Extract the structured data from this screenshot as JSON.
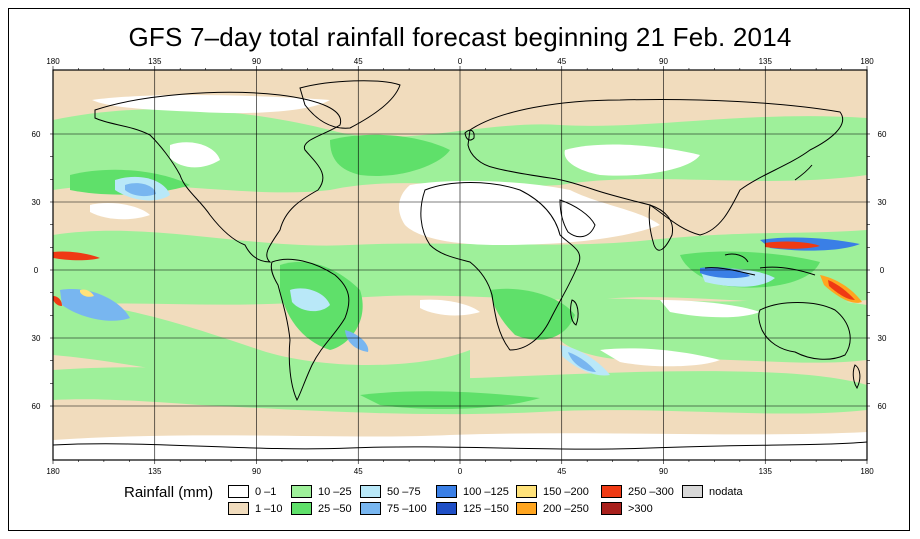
{
  "title": "GFS 7–day total rainfall forecast beginning 21 Feb. 2014",
  "axes": {
    "lon_labels": [
      "180",
      "135",
      "90",
      "45",
      "0",
      "45",
      "90",
      "135",
      "180"
    ],
    "lat_labels_left": [
      "60",
      "30",
      "0",
      "30",
      "60"
    ],
    "lat_labels_right": [
      "60",
      "30",
      "0",
      "30",
      "60"
    ]
  },
  "legend": {
    "title": "Rainfall (mm)",
    "items": [
      {
        "label": "0 –1",
        "color": "#ffffff"
      },
      {
        "label": "1 –10",
        "color": "#f1dcbd"
      },
      {
        "label": "10 –25",
        "color": "#9ef09a"
      },
      {
        "label": "25 –50",
        "color": "#5fe06a"
      },
      {
        "label": "50 –75",
        "color": "#b9e8f8"
      },
      {
        "label": "75 –100",
        "color": "#78b6f0"
      },
      {
        "label": "100 –125",
        "color": "#3a7fe6"
      },
      {
        "label": "125 –150",
        "color": "#1f4fc6"
      },
      {
        "label": "150 –200",
        "color": "#ffe27a"
      },
      {
        "label": "200 –250",
        "color": "#ffa51f"
      },
      {
        "label": "250 –300",
        "color": "#ef3a14"
      },
      {
        "label": ">300",
        "color": "#a8201c"
      },
      {
        "label": "nodata",
        "color": "#d8d8d8"
      }
    ]
  }
}
